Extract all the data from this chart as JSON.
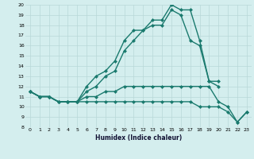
{
  "xlabel": "Humidex (Indice chaleur)",
  "x": [
    0,
    1,
    2,
    3,
    4,
    5,
    6,
    7,
    8,
    9,
    10,
    11,
    12,
    13,
    14,
    15,
    16,
    17,
    18,
    19,
    20,
    21,
    22,
    23
  ],
  "line1": [
    11.5,
    11.0,
    11.0,
    10.5,
    10.5,
    10.5,
    12.0,
    13.0,
    13.5,
    14.5,
    16.5,
    17.5,
    17.5,
    18.5,
    18.5,
    20.0,
    19.5,
    19.5,
    16.5,
    12.5,
    12.5,
    null,
    null,
    null
  ],
  "line2": [
    11.5,
    11.0,
    11.0,
    10.5,
    10.5,
    10.5,
    11.5,
    12.0,
    13.0,
    13.5,
    15.5,
    16.5,
    17.5,
    18.0,
    18.0,
    19.5,
    19.0,
    16.5,
    16.0,
    12.5,
    12.0,
    null,
    null,
    null
  ],
  "line3": [
    11.5,
    11.0,
    11.0,
    10.5,
    10.5,
    10.5,
    11.0,
    11.0,
    11.5,
    11.5,
    12.0,
    12.0,
    12.0,
    12.0,
    12.0,
    12.0,
    12.0,
    12.0,
    12.0,
    12.0,
    10.5,
    10.0,
    8.5,
    9.5
  ],
  "line4": [
    11.5,
    11.0,
    11.0,
    10.5,
    10.5,
    10.5,
    10.5,
    10.5,
    10.5,
    10.5,
    10.5,
    10.5,
    10.5,
    10.5,
    10.5,
    10.5,
    10.5,
    10.5,
    10.0,
    10.0,
    10.0,
    9.5,
    8.5,
    9.5
  ],
  "line_color": "#1a7a6e",
  "bg_color": "#d4eeee",
  "grid_color": "#b8d8d8",
  "ylim": [
    8,
    20
  ],
  "xlim": [
    -0.5,
    23.5
  ],
  "yticks": [
    8,
    9,
    10,
    11,
    12,
    13,
    14,
    15,
    16,
    17,
    18,
    19,
    20
  ],
  "xticks": [
    0,
    1,
    2,
    3,
    4,
    5,
    6,
    7,
    8,
    9,
    10,
    11,
    12,
    13,
    14,
    15,
    16,
    17,
    18,
    19,
    20,
    21,
    22,
    23
  ],
  "markersize": 2.5,
  "linewidth": 1.0
}
